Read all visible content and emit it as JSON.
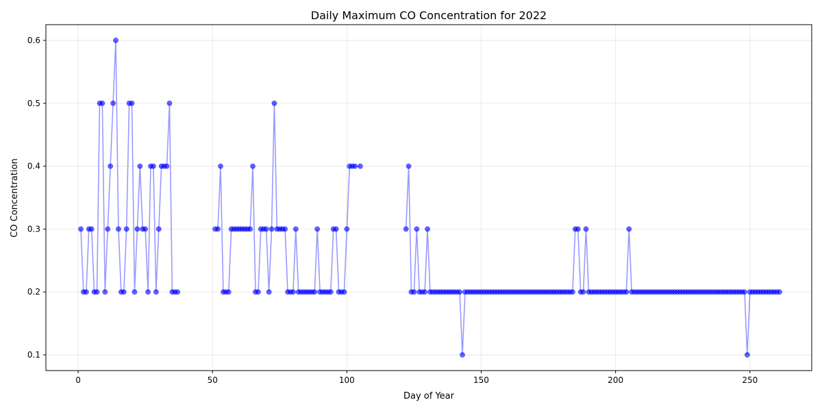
{
  "chart_data": {
    "type": "line",
    "title": "Daily Maximum CO Concentration for 2022",
    "xlabel": "Day of Year",
    "ylabel": "CO Concentration",
    "xlim": [
      -12,
      273
    ],
    "ylim": [
      0.075,
      0.625
    ],
    "xticks": [
      0,
      50,
      100,
      150,
      200,
      250
    ],
    "yticks": [
      0.1,
      0.2,
      0.3,
      0.4,
      0.5,
      0.6
    ],
    "xtick_labels": [
      "0",
      "50",
      "100",
      "150",
      "200",
      "250"
    ],
    "ytick_labels": [
      "0.1",
      "0.2",
      "0.3",
      "0.4",
      "0.5",
      "0.6"
    ],
    "grid": true,
    "color": "#0000ff",
    "segments": [
      {
        "x": [
          1,
          2,
          3,
          4,
          5,
          6,
          7,
          8,
          9,
          10,
          11,
          12,
          13,
          14,
          15,
          16,
          17,
          18,
          19,
          20,
          21,
          22,
          23,
          24,
          25,
          26,
          27,
          28,
          29,
          30,
          31,
          32,
          33,
          34,
          35,
          36,
          37
        ],
        "y": [
          0.3,
          0.2,
          0.2,
          0.3,
          0.3,
          0.2,
          0.2,
          0.5,
          0.5,
          0.2,
          0.3,
          0.4,
          0.5,
          0.6,
          0.3,
          0.2,
          0.2,
          0.3,
          0.5,
          0.5,
          0.2,
          0.3,
          0.4,
          0.3,
          0.3,
          0.2,
          0.4,
          0.4,
          0.2,
          0.3,
          0.4,
          0.4,
          0.4,
          0.5,
          0.2,
          0.2,
          0.2
        ]
      },
      {
        "x": [
          51,
          52,
          53,
          54,
          55,
          56,
          57,
          58,
          59,
          60,
          61,
          62,
          63,
          64,
          65,
          66,
          67,
          68,
          69,
          70,
          71,
          72,
          73,
          74,
          75,
          76,
          77,
          78,
          79,
          80,
          81,
          82,
          83,
          84,
          85,
          86,
          87,
          88,
          89,
          90,
          91,
          92,
          93,
          94,
          95,
          96,
          97,
          98,
          99,
          100,
          101,
          102,
          103,
          105
        ],
        "y": [
          0.3,
          0.3,
          0.4,
          0.2,
          0.2,
          0.2,
          0.3,
          0.3,
          0.3,
          0.3,
          0.3,
          0.3,
          0.3,
          0.3,
          0.4,
          0.2,
          0.2,
          0.3,
          0.3,
          0.3,
          0.2,
          0.3,
          0.5,
          0.3,
          0.3,
          0.3,
          0.3,
          0.2,
          0.2,
          0.2,
          0.3,
          0.2,
          0.2,
          0.2,
          0.2,
          0.2,
          0.2,
          0.2,
          0.3,
          0.2,
          0.2,
          0.2,
          0.2,
          0.2,
          0.3,
          0.3,
          0.2,
          0.2,
          0.2,
          0.3,
          0.4,
          0.4,
          0.4,
          0.4
        ]
      },
      {
        "x": [
          122,
          123,
          124,
          125,
          126,
          127,
          128,
          129,
          130,
          131,
          132,
          133,
          134,
          135,
          136,
          137,
          138,
          139,
          140,
          141,
          142,
          143,
          144,
          145,
          146,
          147,
          148,
          149,
          150,
          151,
          152,
          153,
          154,
          155,
          156,
          157,
          158,
          159,
          160,
          161,
          162,
          163,
          164,
          165,
          166,
          167,
          168,
          169,
          170,
          171,
          172,
          173,
          174,
          175,
          176,
          177,
          178,
          179,
          180,
          181,
          182,
          183,
          184,
          185,
          186,
          187,
          188,
          189,
          190,
          191,
          192,
          193,
          194,
          195,
          196,
          197,
          198,
          199,
          200,
          201,
          202,
          203,
          204,
          205,
          206,
          207,
          208,
          209,
          210,
          211,
          212,
          213,
          214,
          215,
          216,
          217,
          218,
          219,
          220,
          221,
          222,
          223,
          224,
          225,
          226,
          227,
          228,
          229,
          230,
          231,
          232,
          233,
          234,
          235,
          236,
          237,
          238,
          239,
          240,
          241,
          242,
          243,
          244,
          245,
          246,
          247,
          248,
          249,
          250,
          251,
          252,
          253,
          254,
          255,
          256,
          257,
          258,
          259,
          260,
          261
        ],
        "y": [
          0.3,
          0.4,
          0.2,
          0.2,
          0.3,
          0.2,
          0.2,
          0.2,
          0.3,
          0.2,
          0.2,
          0.2,
          0.2,
          0.2,
          0.2,
          0.2,
          0.2,
          0.2,
          0.2,
          0.2,
          0.2,
          0.1,
          0.2,
          0.2,
          0.2,
          0.2,
          0.2,
          0.2,
          0.2,
          0.2,
          0.2,
          0.2,
          0.2,
          0.2,
          0.2,
          0.2,
          0.2,
          0.2,
          0.2,
          0.2,
          0.2,
          0.2,
          0.2,
          0.2,
          0.2,
          0.2,
          0.2,
          0.2,
          0.2,
          0.2,
          0.2,
          0.2,
          0.2,
          0.2,
          0.2,
          0.2,
          0.2,
          0.2,
          0.2,
          0.2,
          0.2,
          0.2,
          0.2,
          0.3,
          0.3,
          0.2,
          0.2,
          0.3,
          0.2,
          0.2,
          0.2,
          0.2,
          0.2,
          0.2,
          0.2,
          0.2,
          0.2,
          0.2,
          0.2,
          0.2,
          0.2,
          0.2,
          0.2,
          0.3,
          0.2,
          0.2,
          0.2,
          0.2,
          0.2,
          0.2,
          0.2,
          0.2,
          0.2,
          0.2,
          0.2,
          0.2,
          0.2,
          0.2,
          0.2,
          0.2,
          0.2,
          0.2,
          0.2,
          0.2,
          0.2,
          0.2,
          0.2,
          0.2,
          0.2,
          0.2,
          0.2,
          0.2,
          0.2,
          0.2,
          0.2,
          0.2,
          0.2,
          0.2,
          0.2,
          0.2,
          0.2,
          0.2,
          0.2,
          0.2,
          0.2,
          0.2,
          0.2,
          0.1,
          0.2,
          0.2,
          0.2,
          0.2,
          0.2,
          0.2,
          0.2,
          0.2,
          0.2,
          0.2,
          0.2,
          0.2
        ]
      }
    ]
  }
}
